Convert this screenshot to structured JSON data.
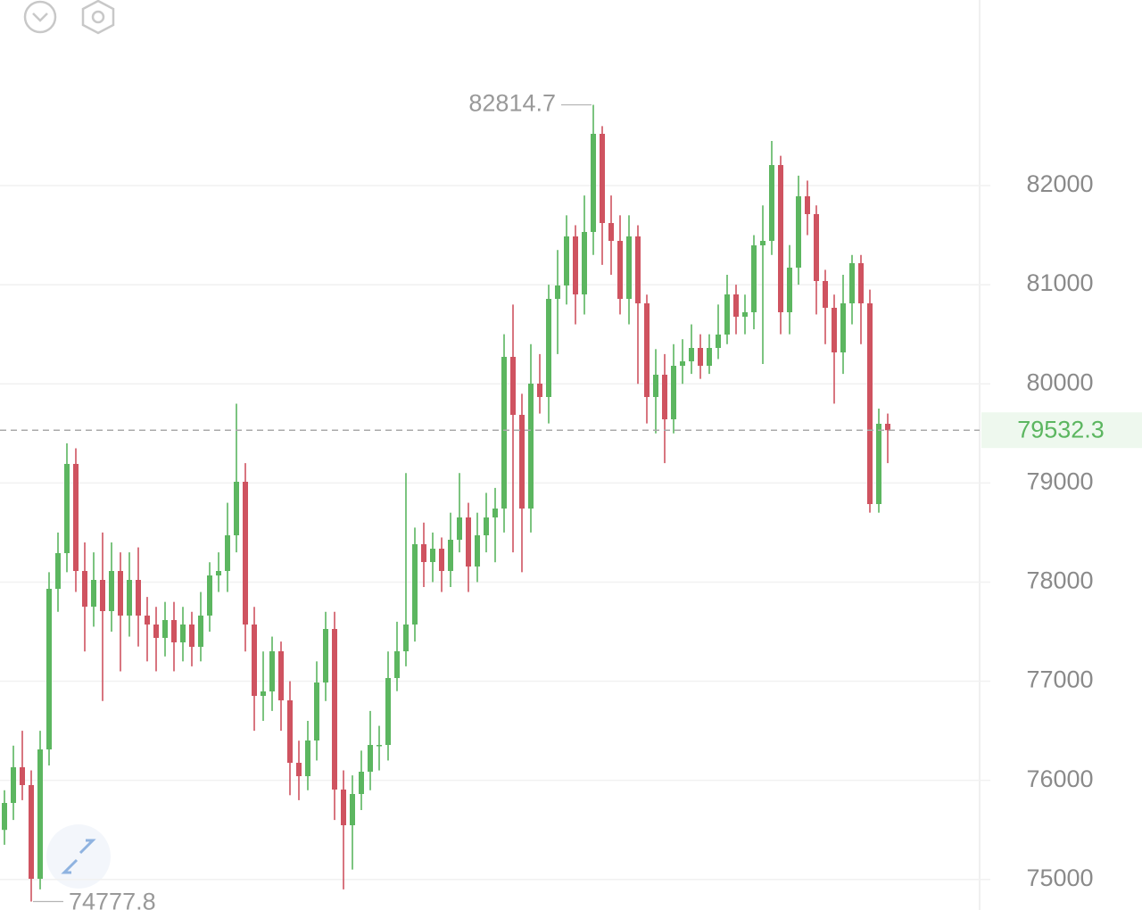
{
  "chart_data": {
    "type": "candlestick",
    "up_color": "#5cb660",
    "down_color": "#cf5360",
    "ylim": [
      74692,
      83872
    ],
    "yticks": [
      75000,
      76000,
      77000,
      78000,
      79000,
      80000,
      81000,
      82000
    ],
    "grid": true,
    "ohlc": [
      [
        75500,
        75900,
        75350,
        75772
      ],
      [
        75772,
        76350,
        75600,
        76132
      ],
      [
        76132,
        76500,
        75800,
        75952
      ],
      [
        75952,
        76100,
        74777.8,
        75007
      ],
      [
        75007,
        76500,
        74900,
        76312
      ],
      [
        76312,
        78100,
        76150,
        77932
      ],
      [
        77932,
        78500,
        77700,
        78292
      ],
      [
        78292,
        79400,
        78100,
        79192
      ],
      [
        79192,
        79350,
        77900,
        78112
      ],
      [
        78112,
        78400,
        77300,
        77752
      ],
      [
        77752,
        78300,
        77550,
        78022
      ],
      [
        78022,
        78500,
        76800,
        77707
      ],
      [
        77707,
        78400,
        77500,
        78112
      ],
      [
        78112,
        78300,
        77100,
        77662
      ],
      [
        77662,
        78300,
        77450,
        78022
      ],
      [
        78022,
        78350,
        77350,
        77662
      ],
      [
        77662,
        77850,
        77200,
        77572
      ],
      [
        77572,
        77750,
        77100,
        77437
      ],
      [
        77437,
        77800,
        77250,
        77617
      ],
      [
        77617,
        77800,
        77100,
        77392
      ],
      [
        77392,
        77750,
        77200,
        77572
      ],
      [
        77572,
        77700,
        77150,
        77347
      ],
      [
        77347,
        77900,
        77200,
        77662
      ],
      [
        77662,
        78200,
        77500,
        78067
      ],
      [
        78067,
        78300,
        77900,
        78112
      ],
      [
        78112,
        78800,
        77900,
        78472
      ],
      [
        78472,
        79800,
        78300,
        79012
      ],
      [
        79012,
        79200,
        77300,
        77572
      ],
      [
        77572,
        77750,
        76500,
        76852
      ],
      [
        76852,
        77300,
        76600,
        76897
      ],
      [
        76897,
        77450,
        76700,
        77302
      ],
      [
        77302,
        77400,
        76500,
        76807
      ],
      [
        76807,
        77000,
        75850,
        76177
      ],
      [
        76177,
        76400,
        75800,
        76042
      ],
      [
        76042,
        76600,
        75900,
        76402
      ],
      [
        76402,
        77200,
        76200,
        76987
      ],
      [
        76987,
        77700,
        76800,
        77527
      ],
      [
        77527,
        77700,
        75600,
        75907
      ],
      [
        75907,
        76100,
        74900,
        75547
      ],
      [
        75547,
        76050,
        75100,
        75862
      ],
      [
        75862,
        76300,
        75700,
        76087
      ],
      [
        76087,
        76700,
        75900,
        76357
      ],
      [
        76357,
        76550,
        76100,
        76357
      ],
      [
        76357,
        77300,
        76200,
        77032
      ],
      [
        77032,
        77600,
        76900,
        77302
      ],
      [
        77302,
        79100,
        77150,
        77572
      ],
      [
        77572,
        78550,
        77400,
        78382
      ],
      [
        78382,
        78600,
        77950,
        78202
      ],
      [
        78202,
        78500,
        78000,
        78337
      ],
      [
        78337,
        78450,
        77900,
        78112
      ],
      [
        78112,
        78700,
        77950,
        78427
      ],
      [
        78427,
        79100,
        78300,
        78652
      ],
      [
        78652,
        78800,
        77900,
        78157
      ],
      [
        78157,
        78700,
        78000,
        78472
      ],
      [
        78472,
        78900,
        78300,
        78652
      ],
      [
        78652,
        78950,
        78200,
        78742
      ],
      [
        78742,
        80500,
        78500,
        80272
      ],
      [
        80272,
        80800,
        78300,
        79687
      ],
      [
        79687,
        79900,
        78100,
        78742
      ],
      [
        78742,
        80400,
        78500,
        80002
      ],
      [
        80002,
        80300,
        79700,
        79867
      ],
      [
        79867,
        81000,
        79600,
        80857
      ],
      [
        80857,
        81350,
        80300,
        80992
      ],
      [
        80992,
        81700,
        80800,
        81487
      ],
      [
        81487,
        81600,
        80600,
        80902
      ],
      [
        80902,
        81900,
        80700,
        81532
      ],
      [
        81532,
        82814.7,
        81300,
        82522
      ],
      [
        82522,
        82600,
        81200,
        81622
      ],
      [
        81622,
        81900,
        81100,
        81442
      ],
      [
        81442,
        81700,
        80700,
        80857
      ],
      [
        80857,
        81700,
        80600,
        81487
      ],
      [
        81487,
        81600,
        80000,
        80812
      ],
      [
        80812,
        80900,
        79600,
        79867
      ],
      [
        79867,
        80350,
        79500,
        80092
      ],
      [
        80092,
        80300,
        79200,
        79642
      ],
      [
        79642,
        80400,
        79500,
        80182
      ],
      [
        80182,
        80450,
        80000,
        80227
      ],
      [
        80227,
        80600,
        80100,
        80362
      ],
      [
        80362,
        80500,
        80050,
        80182
      ],
      [
        80182,
        80500,
        80100,
        80362
      ],
      [
        80362,
        80800,
        80250,
        80497
      ],
      [
        80497,
        81100,
        80400,
        80902
      ],
      [
        80902,
        81000,
        80500,
        80677
      ],
      [
        80677,
        80900,
        80500,
        80722
      ],
      [
        80722,
        81500,
        80550,
        81397
      ],
      [
        81397,
        81800,
        80200,
        81442
      ],
      [
        81442,
        82450,
        81300,
        82207
      ],
      [
        82207,
        82300,
        80500,
        80722
      ],
      [
        80722,
        81400,
        80500,
        81172
      ],
      [
        81172,
        82100,
        81000,
        81892
      ],
      [
        81892,
        82050,
        81500,
        81712
      ],
      [
        81712,
        81800,
        80700,
        81037
      ],
      [
        81037,
        81150,
        80400,
        80767
      ],
      [
        80767,
        80900,
        79800,
        80317
      ],
      [
        80317,
        81100,
        80100,
        80812
      ],
      [
        80812,
        81300,
        80600,
        81217
      ],
      [
        81217,
        81300,
        80400,
        80812
      ],
      [
        80812,
        80950,
        78700,
        78787
      ],
      [
        78787,
        79750,
        78700,
        79597
      ],
      [
        79597,
        79700,
        79200,
        79532.3
      ]
    ]
  }
}
